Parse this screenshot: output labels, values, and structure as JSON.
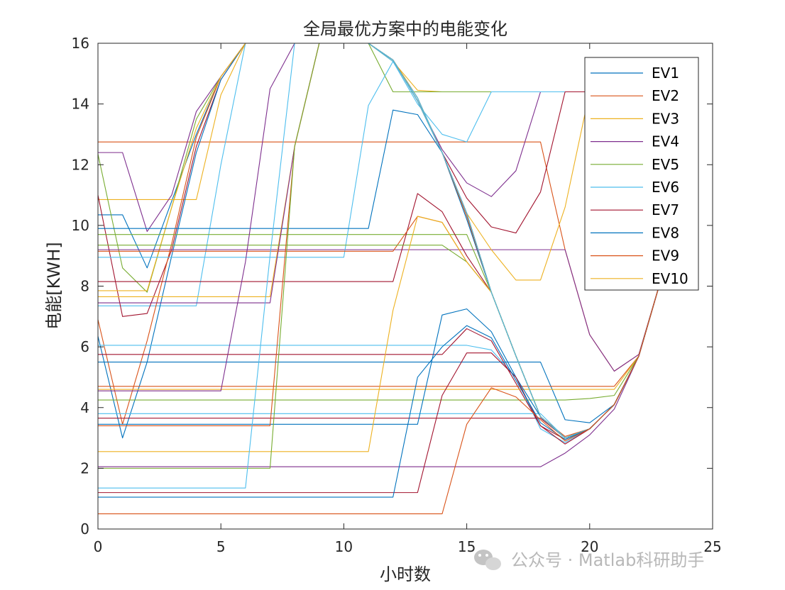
{
  "chart_data": {
    "type": "line",
    "title": "全局最优方案中的电能变化",
    "xlabel": "小时数",
    "ylabel": "电能[KWH]",
    "xlim": [
      0,
      25
    ],
    "ylim": [
      0,
      16
    ],
    "xticks": [
      "0",
      "5",
      "10",
      "15",
      "20",
      "25"
    ],
    "yticks": [
      "0",
      "2",
      "4",
      "6",
      "8",
      "10",
      "12",
      "14",
      "16"
    ],
    "grid": false,
    "legend_position": "top-right",
    "palette": [
      "#0072BD",
      "#D95319",
      "#EDB120",
      "#7E2F8E",
      "#77AC30",
      "#4DBEEE",
      "#A2142F"
    ],
    "legend": [
      "EV1",
      "EV2",
      "EV3",
      "EV4",
      "EV5",
      "EV6",
      "EV7",
      "EV8",
      "EV9",
      "EV10"
    ],
    "x": [
      0,
      1,
      2,
      3,
      4,
      5,
      6,
      7,
      8,
      9,
      10,
      11,
      12,
      13,
      14,
      15,
      16,
      17,
      18,
      19,
      20,
      21,
      22,
      23
    ],
    "series": [
      {
        "values": [
          10.35,
          10.35,
          8.6,
          10.8,
          13.0,
          14.9,
          16,
          16,
          16,
          16,
          16,
          16,
          15.45,
          14.2,
          12.4,
          10.2,
          7.8,
          5.7,
          3.7,
          3.0,
          3.3,
          4.1,
          5.7,
          8.5
        ]
      },
      {
        "values": [
          12.75,
          12.75,
          12.75,
          12.75,
          12.75,
          12.75,
          12.75,
          12.75,
          12.75,
          12.75,
          12.75,
          12.75,
          12.75,
          12.75,
          12.75,
          12.75,
          12.75,
          12.75,
          12.75,
          9.2,
          6.4,
          5.2,
          5.75,
          8.5
        ]
      },
      {
        "values": [
          10.85,
          10.85,
          10.85,
          10.85,
          10.85,
          14.3,
          16,
          16,
          16,
          16,
          16,
          16,
          15.4,
          14.45,
          14.4,
          14.4,
          14.4,
          14.4,
          14.4,
          14.4,
          14.4,
          14.4,
          14.4,
          14.4
        ]
      },
      {
        "values": [
          12.4,
          12.4,
          9.8,
          11.0,
          13.75,
          14.9,
          16,
          16,
          16,
          16,
          16,
          16,
          15.45,
          14.1,
          12.5,
          11.4,
          10.95,
          11.8,
          14.4,
          14.4,
          14.4,
          14.4,
          14.4,
          14.4
        ]
      },
      {
        "values": [
          12.35,
          8.6,
          7.8,
          10.6,
          13.5,
          14.9,
          16,
          16,
          16,
          16,
          16,
          16,
          14.4,
          14.4,
          14.4,
          14.4,
          14.4,
          14.4,
          14.4,
          14.4,
          14.4,
          14.4,
          14.4,
          14.4
        ]
      },
      {
        "values": [
          7.35,
          7.35,
          7.35,
          7.35,
          7.35,
          12.0,
          16,
          16,
          16,
          16,
          16,
          16,
          15.4,
          14.0,
          13.0,
          12.75,
          14.4,
          14.4,
          14.4,
          14.4,
          14.4,
          14.4,
          14.4,
          14.4
        ]
      },
      {
        "values": [
          11.0,
          7.0,
          7.1,
          9.2,
          12.6,
          14.8,
          16,
          16,
          16,
          16,
          16,
          16,
          15.45,
          14.1,
          12.4,
          10.9,
          9.95,
          9.75,
          11.1,
          14.4,
          14.4,
          14.4,
          14.4,
          14.4
        ]
      },
      {
        "values": [
          6.35,
          3.0,
          5.5,
          9.0,
          12.4,
          14.8,
          16,
          16,
          16,
          16,
          16,
          16,
          15.45,
          14.2,
          12.4,
          10.4,
          7.8,
          5.7,
          3.7,
          3.0,
          3.3,
          4.1,
          5.7,
          8.5
        ]
      },
      {
        "values": [
          6.9,
          3.45,
          6.2,
          9.4,
          12.9,
          14.9,
          16,
          16,
          16,
          16,
          16,
          16,
          15.45,
          14.2,
          12.4,
          10.3,
          7.8,
          5.7,
          3.7,
          3.05,
          3.3,
          4.1,
          5.7,
          8.5
        ]
      },
      {
        "values": [
          7.85,
          7.85,
          7.85,
          10.6,
          13.2,
          14.9,
          16,
          16,
          16,
          16,
          16,
          16,
          15.45,
          14.2,
          12.4,
          10.4,
          7.8,
          5.7,
          3.7,
          3.0,
          3.3,
          4.1,
          5.7,
          8.5
        ]
      },
      {
        "values": [
          9.2,
          9.2,
          9.2,
          9.2,
          9.2,
          9.2,
          9.2,
          9.2,
          9.2,
          9.2,
          9.2,
          9.2,
          9.2,
          9.2,
          9.2,
          9.2,
          9.2,
          9.2,
          9.2,
          9.2,
          6.4,
          5.2,
          5.75,
          8.5
        ]
      },
      {
        "values": [
          9.7,
          9.7,
          9.7,
          9.7,
          9.7,
          9.7,
          9.7,
          9.7,
          9.7,
          9.7,
          9.7,
          9.7,
          9.7,
          9.7,
          9.7,
          9.7,
          7.8,
          5.7,
          3.7,
          3.0,
          3.3,
          4.1,
          5.7,
          8.5
        ]
      },
      {
        "values": [
          8.95,
          8.95,
          8.95,
          8.95,
          8.95,
          8.95,
          8.95,
          8.95,
          8.95,
          8.95,
          8.95,
          13.95,
          15.4,
          14.2,
          12.4,
          10.4,
          7.8,
          5.7,
          3.7,
          3.0,
          3.3,
          4.1,
          5.7,
          8.5
        ]
      },
      {
        "values": [
          8.15,
          8.15,
          8.15,
          8.15,
          8.15,
          8.15,
          8.15,
          8.15,
          8.15,
          8.15,
          8.15,
          8.15,
          8.15,
          11.05,
          10.45,
          9.0,
          7.8,
          5.7,
          3.7,
          3.0,
          3.3,
          4.1,
          5.7,
          8.5
        ]
      },
      {
        "values": [
          9.9,
          9.9,
          9.9,
          9.9,
          9.9,
          9.9,
          9.9,
          9.9,
          9.9,
          9.9,
          9.9,
          9.9,
          13.8,
          13.65,
          12.4,
          10.4,
          7.8,
          5.7,
          3.7,
          3.0,
          3.3,
          4.1,
          5.7,
          8.5
        ]
      },
      {
        "values": [
          9.15,
          9.15,
          9.15,
          9.15,
          9.15,
          9.15,
          9.15,
          9.15,
          9.15,
          9.15,
          9.15,
          9.15,
          9.15,
          10.3,
          10.1,
          8.8,
          7.8,
          5.7,
          3.7,
          3.0,
          3.3,
          4.1,
          5.7,
          8.5
        ]
      },
      {
        "values": [
          7.65,
          7.65,
          7.65,
          7.65,
          7.65,
          7.65,
          7.65,
          7.65,
          12.6,
          16,
          16,
          16,
          15.45,
          14.1,
          12.4,
          10.4,
          9.2,
          8.2,
          8.2,
          10.6,
          14.4,
          14.4,
          14.4,
          14.4
        ]
      },
      {
        "values": [
          7.45,
          7.45,
          7.45,
          7.45,
          7.45,
          7.45,
          7.45,
          7.45,
          12.6,
          16,
          16,
          16,
          15.45,
          14.1,
          12.4,
          10.4,
          7.8,
          5.7,
          3.7,
          3.0,
          3.3,
          4.1,
          5.7,
          8.5
        ]
      },
      {
        "values": [
          9.35,
          9.35,
          9.35,
          9.35,
          9.35,
          9.35,
          9.35,
          9.35,
          9.35,
          9.35,
          9.35,
          9.35,
          9.35,
          9.35,
          9.35,
          8.8,
          7.8,
          5.7,
          3.7,
          3.0,
          3.3,
          4.1,
          5.7,
          8.5
        ]
      },
      {
        "values": [
          6.05,
          6.05,
          6.05,
          6.05,
          6.05,
          6.05,
          6.05,
          6.05,
          6.05,
          6.05,
          6.05,
          6.05,
          6.05,
          6.05,
          6.05,
          6.05,
          5.9,
          5.0,
          3.3,
          2.85,
          3.3,
          4.1,
          5.7,
          8.5
        ]
      },
      {
        "values": [
          5.75,
          5.75,
          5.75,
          5.75,
          5.75,
          5.75,
          5.75,
          5.75,
          5.75,
          5.75,
          5.75,
          5.75,
          5.75,
          5.75,
          5.75,
          6.6,
          6.2,
          4.8,
          3.4,
          2.95,
          3.3,
          4.1,
          5.7,
          8.5
        ]
      },
      {
        "values": [
          5.5,
          5.5,
          5.5,
          5.5,
          5.5,
          5.5,
          5.5,
          5.5,
          5.5,
          5.5,
          5.5,
          5.5,
          5.5,
          5.5,
          5.5,
          5.5,
          5.5,
          5.5,
          5.5,
          3.6,
          3.5,
          4.1,
          5.7,
          8.5
        ]
      },
      {
        "values": [
          4.7,
          4.7,
          4.7,
          4.7,
          4.7,
          4.7,
          4.7,
          4.7,
          4.7,
          4.7,
          4.7,
          4.7,
          4.7,
          4.7,
          4.7,
          4.7,
          4.7,
          4.7,
          4.7,
          4.7,
          4.7,
          4.7,
          5.7,
          8.5
        ]
      },
      {
        "values": [
          4.6,
          4.6,
          4.6,
          4.6,
          4.6,
          4.6,
          4.6,
          4.6,
          4.6,
          4.6,
          4.6,
          4.6,
          4.6,
          4.6,
          4.6,
          4.6,
          4.6,
          4.6,
          4.6,
          4.6,
          4.6,
          4.6,
          5.7,
          8.5
        ]
      },
      {
        "values": [
          4.55,
          4.55,
          4.55,
          4.55,
          4.55,
          4.55,
          8.8,
          14.5,
          16,
          16,
          16,
          16,
          15.45,
          14.1,
          12.4,
          10.4,
          7.8,
          5.7,
          3.7,
          3.0,
          3.3,
          4.1,
          5.7,
          8.5
        ]
      },
      {
        "values": [
          4.25,
          4.25,
          4.25,
          4.25,
          4.25,
          4.25,
          4.25,
          4.25,
          4.25,
          4.25,
          4.25,
          4.25,
          4.25,
          4.25,
          4.25,
          4.25,
          4.25,
          4.25,
          4.25,
          4.25,
          4.3,
          4.4,
          5.7,
          8.5
        ]
      },
      {
        "values": [
          3.8,
          3.8,
          3.8,
          3.8,
          3.8,
          3.8,
          3.8,
          3.8,
          3.8,
          3.8,
          3.8,
          3.8,
          3.8,
          3.8,
          3.8,
          3.8,
          3.8,
          3.8,
          3.8,
          3.0,
          3.3,
          4.1,
          5.7,
          8.5
        ]
      },
      {
        "values": [
          3.65,
          3.65,
          3.65,
          3.65,
          3.65,
          3.65,
          3.65,
          3.65,
          3.65,
          3.65,
          3.65,
          3.65,
          3.65,
          3.65,
          3.65,
          3.65,
          3.65,
          3.65,
          3.65,
          3.0,
          3.3,
          4.1,
          5.7,
          8.5
        ]
      },
      {
        "values": [
          3.45,
          3.45,
          3.45,
          3.45,
          3.45,
          3.45,
          3.45,
          3.45,
          3.45,
          3.45,
          3.45,
          3.45,
          3.45,
          3.45,
          7.05,
          7.25,
          6.5,
          5.0,
          3.7,
          3.0,
          3.3,
          4.1,
          5.7,
          8.5
        ]
      },
      {
        "values": [
          3.4,
          3.4,
          3.4,
          3.4,
          3.4,
          3.4,
          3.4,
          3.4,
          12.6,
          16,
          16,
          16,
          15.45,
          14.1,
          12.4,
          10.4,
          7.8,
          5.7,
          3.7,
          3.0,
          3.3,
          4.1,
          5.7,
          8.5
        ]
      },
      {
        "values": [
          2.55,
          2.55,
          2.55,
          2.55,
          2.55,
          2.55,
          2.55,
          2.55,
          2.55,
          2.55,
          2.55,
          2.55,
          7.2,
          10.3,
          10.1,
          8.8,
          7.8,
          5.7,
          3.7,
          3.0,
          3.3,
          4.1,
          5.7,
          8.5
        ]
      },
      {
        "values": [
          2.05,
          2.05,
          2.05,
          2.05,
          2.05,
          2.05,
          2.05,
          2.05,
          2.05,
          2.05,
          2.05,
          2.05,
          2.05,
          2.05,
          2.05,
          2.05,
          2.05,
          2.05,
          2.05,
          2.5,
          3.1,
          3.95,
          5.7,
          8.5
        ]
      },
      {
        "values": [
          2.0,
          2.0,
          2.0,
          2.0,
          2.0,
          2.0,
          2.0,
          2.0,
          12.6,
          16,
          16,
          16,
          15.45,
          14.1,
          12.4,
          10.4,
          7.8,
          5.7,
          3.7,
          3.0,
          3.3,
          4.1,
          5.7,
          8.5
        ]
      },
      {
        "values": [
          1.35,
          1.35,
          1.35,
          1.35,
          1.35,
          1.35,
          1.35,
          9.0,
          16,
          16,
          16,
          16,
          15.45,
          14.1,
          12.4,
          10.4,
          7.8,
          5.7,
          3.7,
          3.0,
          3.3,
          4.1,
          5.7,
          8.5
        ]
      },
      {
        "values": [
          1.2,
          1.2,
          1.2,
          1.2,
          1.2,
          1.2,
          1.2,
          1.2,
          1.2,
          1.2,
          1.2,
          1.2,
          1.2,
          1.2,
          4.4,
          5.8,
          5.8,
          5.0,
          3.4,
          2.8,
          3.3,
          4.1,
          5.7,
          8.5
        ]
      },
      {
        "values": [
          1.05,
          1.05,
          1.05,
          1.05,
          1.05,
          1.05,
          1.05,
          1.05,
          1.05,
          1.05,
          1.05,
          1.05,
          1.05,
          5.0,
          6.0,
          6.7,
          6.3,
          4.9,
          3.5,
          2.95,
          3.3,
          4.1,
          5.7,
          8.5
        ]
      },
      {
        "values": [
          0.5,
          0.5,
          0.5,
          0.5,
          0.5,
          0.5,
          0.5,
          0.5,
          0.5,
          0.5,
          0.5,
          0.5,
          0.5,
          0.5,
          0.5,
          3.45,
          4.65,
          4.35,
          3.6,
          2.9,
          3.3,
          4.1,
          5.7,
          8.5
        ]
      }
    ]
  },
  "watermark": {
    "text": "公众号 · Matlab科研助手",
    "icon": "wechat-icon"
  }
}
